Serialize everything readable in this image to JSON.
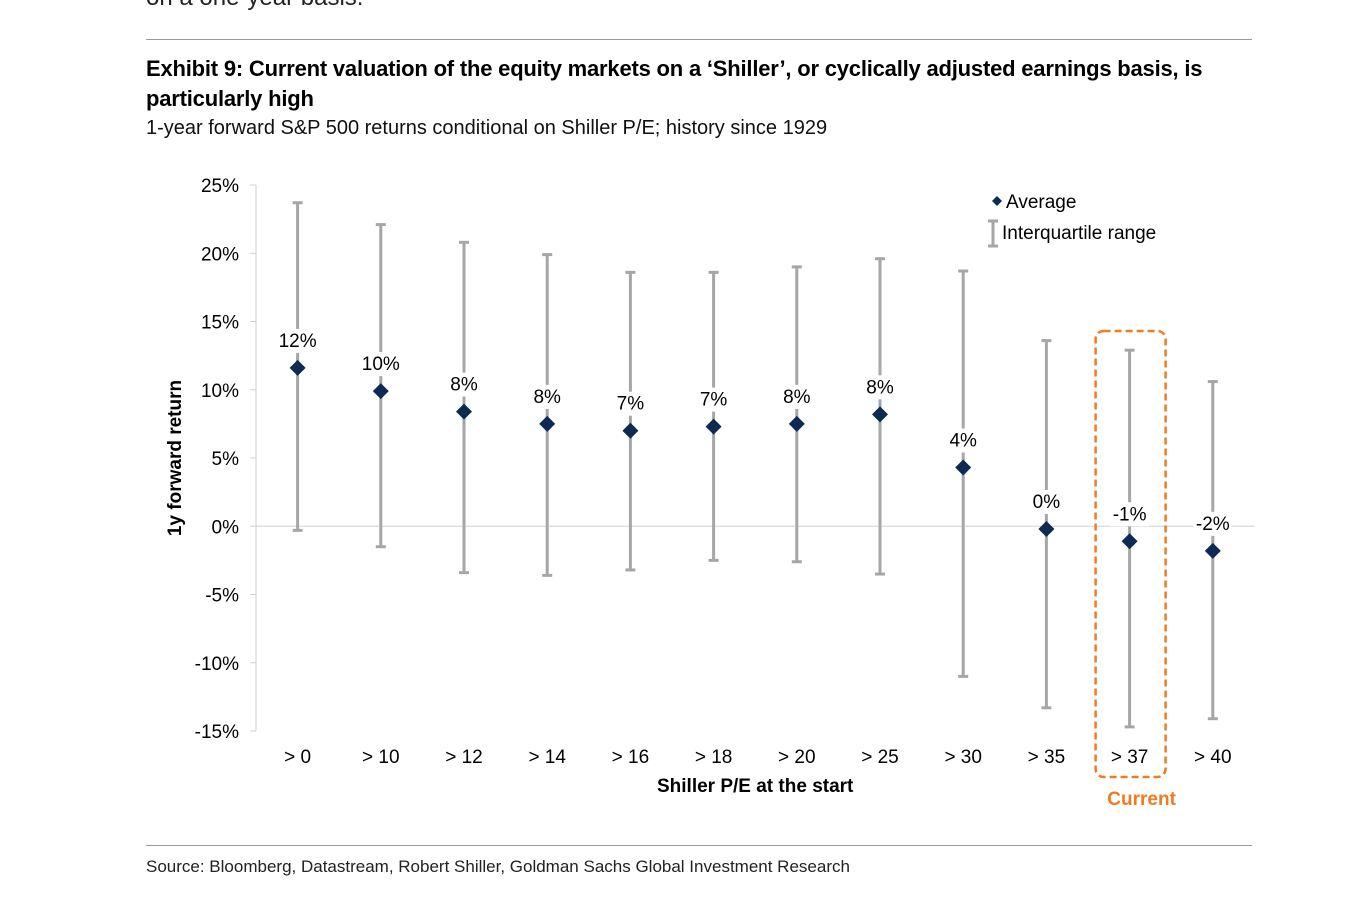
{
  "header": {
    "cut_text": "on a one-year basis.",
    "title": "Exhibit 9: Current valuation of the equity markets on a ‘Shiller’, or cyclically adjusted earnings basis, is particularly high",
    "subtitle": "1-year forward S&P 500 returns conditional on Shiller P/E; history since 1929"
  },
  "footer": {
    "source": "Source: Bloomberg, Datastream, Robert Shiller, Goldman Sachs Global Investment Research"
  },
  "colors": {
    "marker": "#0d2b52",
    "whisker": "#a6a6a6",
    "axis": "#d0d0d0",
    "highlight": "#f07b22"
  },
  "chart_data": {
    "type": "scatter",
    "categories": [
      "> 0",
      "> 10",
      "> 12",
      "> 14",
      "> 16",
      "> 18",
      "> 20",
      "> 25",
      "> 30",
      "> 35",
      "> 37",
      "> 40"
    ],
    "series": [
      {
        "name": "Average",
        "values": [
          11.6,
          9.9,
          8.4,
          7.5,
          7.0,
          7.3,
          7.5,
          8.2,
          4.3,
          -0.2,
          -1.1,
          -1.8
        ],
        "labels": [
          "12%",
          "10%",
          "8%",
          "8%",
          "7%",
          "7%",
          "8%",
          "8%",
          "4%",
          "0%",
          "-1%",
          "-2%"
        ]
      },
      {
        "name": "Interquartile range",
        "low": [
          -0.3,
          -1.5,
          -3.4,
          -3.6,
          -3.2,
          -2.5,
          -2.6,
          -3.5,
          -11.0,
          -13.3,
          -14.7,
          -14.1
        ],
        "high": [
          23.7,
          22.1,
          20.8,
          19.9,
          18.6,
          18.6,
          19.0,
          19.6,
          18.7,
          13.6,
          12.9,
          10.6
        ]
      }
    ],
    "xlabel": "Shiller P/E at the start",
    "ylabel": "1y forward return",
    "ylim": [
      -15,
      25
    ],
    "yticks": [
      25,
      20,
      15,
      10,
      5,
      0,
      -5,
      -10,
      -15
    ],
    "ytick_labels": [
      "25%",
      "20%",
      "15%",
      "10%",
      "5%",
      "0%",
      "-5%",
      "-10%",
      "-15%"
    ],
    "legend": [
      "Average",
      "Interquartile range"
    ],
    "legend_position": "top-right",
    "highlight": {
      "category": "> 37",
      "label": "Current"
    },
    "grid": false
  }
}
